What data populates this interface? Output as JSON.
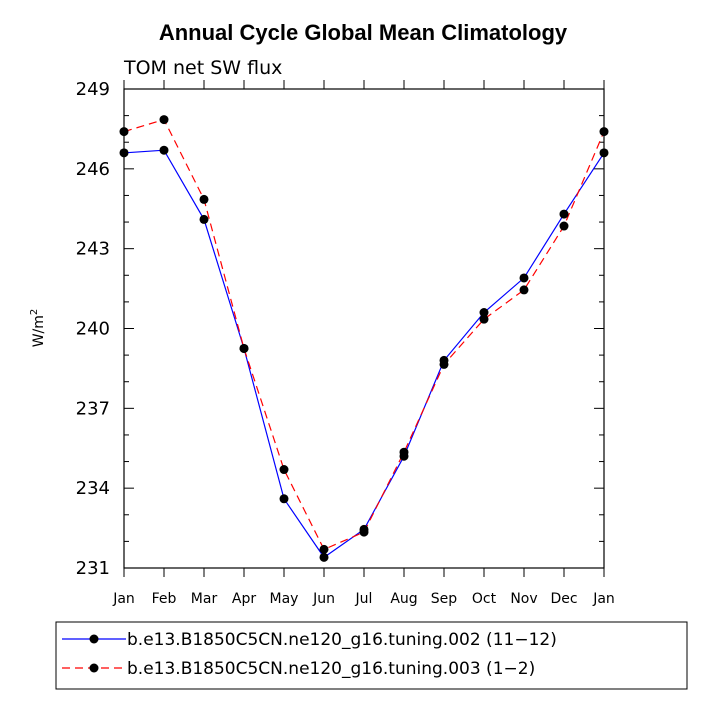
{
  "chart_data": {
    "type": "line",
    "title": "Annual Cycle Global Mean Climatology",
    "subtitle": "TOM net SW flux",
    "ylabel_base": "W/m",
    "ylabel_sup": "2",
    "xlabel": "",
    "categories": [
      "Jan",
      "Feb",
      "Mar",
      "Apr",
      "May",
      "Jun",
      "Jul",
      "Aug",
      "Sep",
      "Oct",
      "Nov",
      "Dec",
      "Jan"
    ],
    "ylim": [
      231,
      249
    ],
    "yticks": [
      231,
      234,
      237,
      240,
      243,
      246,
      249
    ],
    "series": [
      {
        "name": "b.e13.B1850C5CN.ne120_g16.tuning.002 (11−12)",
        "color": "#0000ff",
        "style": "solid",
        "values": [
          246.6,
          246.7,
          244.1,
          239.25,
          233.6,
          231.4,
          232.45,
          235.2,
          238.8,
          240.6,
          241.9,
          244.3,
          246.6
        ]
      },
      {
        "name": "b.e13.B1850C5CN.ne120_g16.tuning.003 (1−2)",
        "color": "#ff0000",
        "style": "dashed",
        "values": [
          247.4,
          247.85,
          244.85,
          239.25,
          234.7,
          231.7,
          232.35,
          235.35,
          238.65,
          240.35,
          241.45,
          243.85,
          247.4
        ]
      }
    ]
  }
}
